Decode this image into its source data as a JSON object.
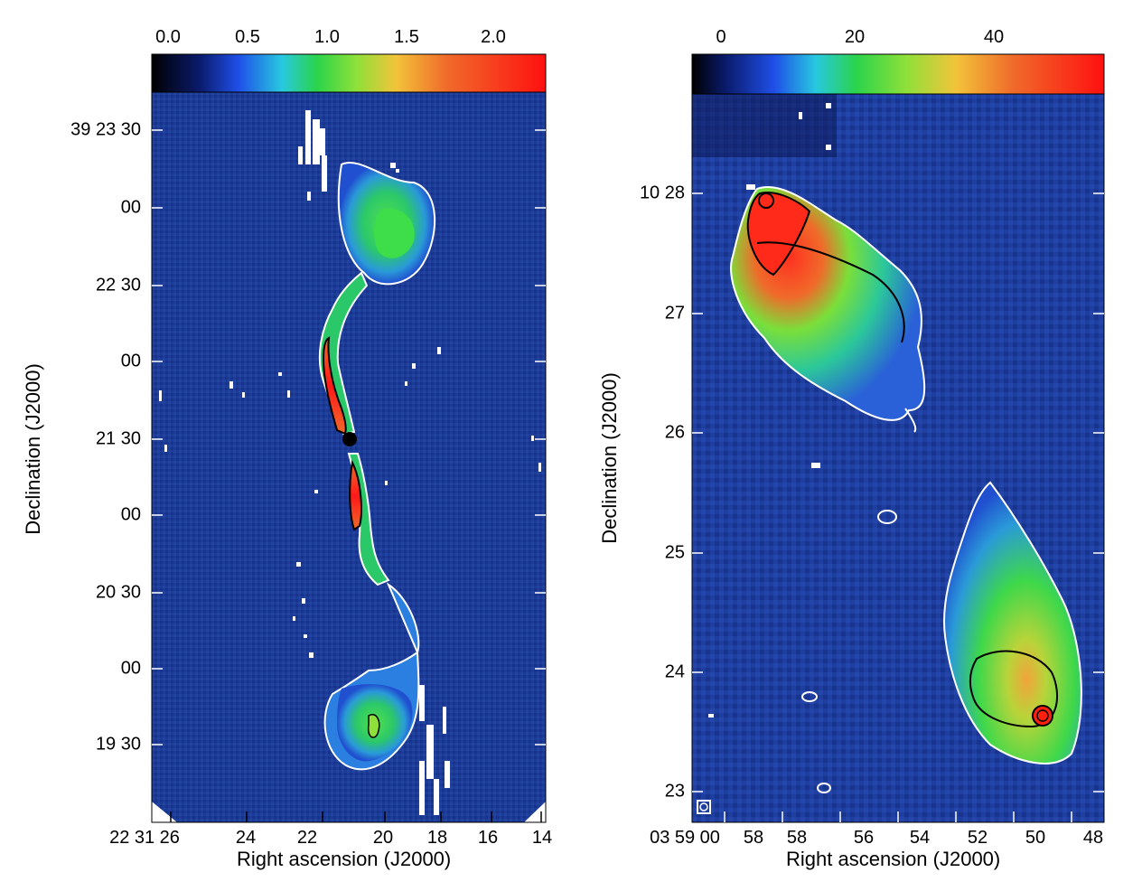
{
  "left": {
    "colorbar_ticks": [
      "0.0",
      "0.5",
      "1.0",
      "1.5",
      "2.0"
    ],
    "y_ticks": [
      "39 23 30",
      "00",
      "22 30",
      "00",
      "21 30",
      "00",
      "20 30",
      "00",
      "19 30"
    ],
    "x_ticks": [
      "22 31 26",
      "24",
      "22",
      "20",
      "18",
      "16",
      "14"
    ],
    "x_title": "Right ascension (J2000)",
    "y_title": "Declination (J2000)"
  },
  "right": {
    "colorbar_ticks": [
      "0",
      "20",
      "40"
    ],
    "y_ticks": [
      "10 28",
      "27",
      "26",
      "25",
      "24",
      "23"
    ],
    "x_ticks": [
      "03 59 00",
      "58",
      "58",
      "56",
      "54",
      "52",
      "50",
      "48"
    ],
    "x_title": "Right ascension (J2000)",
    "y_title": "Declination (J2000)"
  },
  "colormap": [
    "#000000",
    "#1f3fd8",
    "#2bd44a",
    "#8fe03a",
    "#f2b43a",
    "#f05a2a",
    "#ff1a1a"
  ],
  "background_color": "#1c3a9a",
  "contour_colors": {
    "outer": "#ffffff",
    "inner": "#000000"
  }
}
